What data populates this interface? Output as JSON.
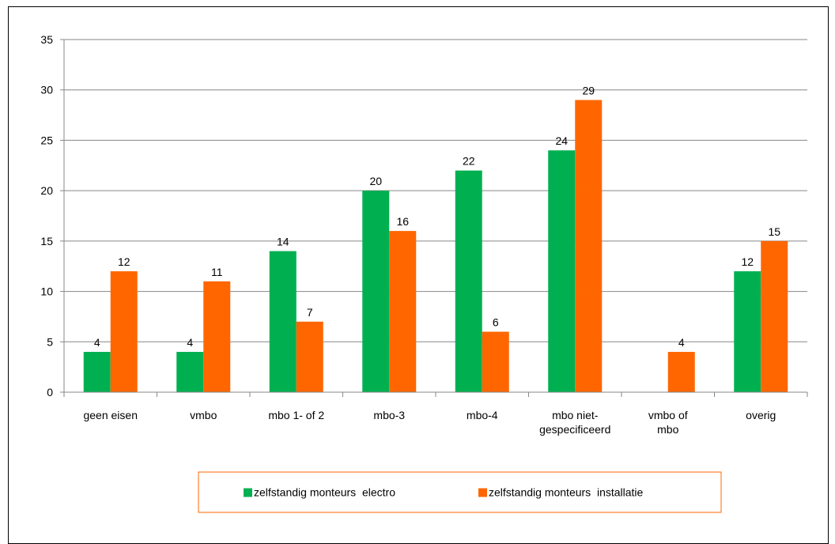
{
  "chart_data": {
    "type": "bar",
    "categories": [
      [
        "geen eisen"
      ],
      [
        "vmbo"
      ],
      [
        "mbo 1-  of 2"
      ],
      [
        "mbo-3"
      ],
      [
        "mbo-4"
      ],
      [
        "mbo niet-",
        "gespecificeerd"
      ],
      [
        "vmbo  of",
        "mbo"
      ],
      [
        "overig"
      ]
    ],
    "series": [
      {
        "name": "zelfstandig monteurs  electro",
        "color": "#00b050",
        "values": [
          4,
          4,
          14,
          20,
          22,
          24,
          null,
          12
        ]
      },
      {
        "name": "zelfstandig monteurs  installatie",
        "color": "#ff6600",
        "values": [
          12,
          11,
          7,
          16,
          6,
          29,
          4,
          15
        ]
      }
    ],
    "ylim": [
      0,
      35
    ],
    "yticks": [
      0,
      5,
      10,
      15,
      20,
      25,
      30,
      35
    ],
    "grid": true,
    "legend_position": "bottom",
    "legend_border_color": "#ff6600",
    "title": "",
    "xlabel": "",
    "ylabel": ""
  }
}
